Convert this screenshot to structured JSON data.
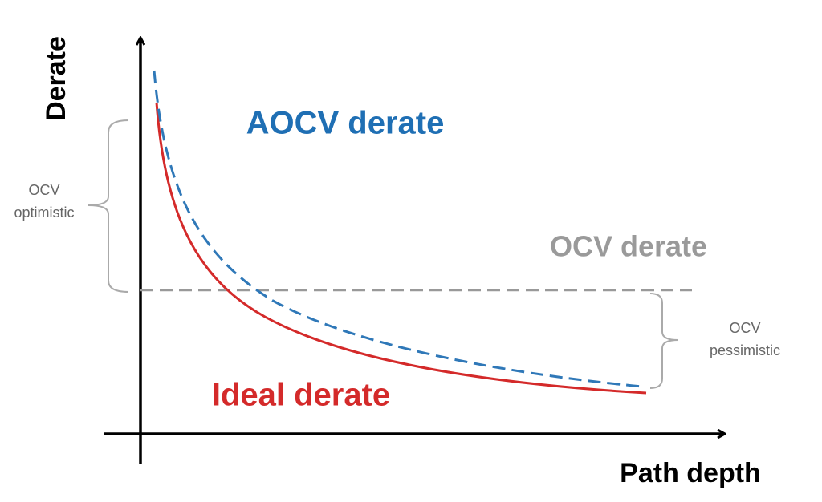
{
  "axes": {
    "y_label": "Derate",
    "x_label": "Path depth"
  },
  "curves": {
    "aocv": "AOCV derate",
    "ocv": "OCV derate",
    "ideal": "Ideal derate"
  },
  "brackets": {
    "optimistic": [
      "OCV",
      "optimistic"
    ],
    "pessimistic": [
      "OCV",
      "pessimistic"
    ]
  }
}
